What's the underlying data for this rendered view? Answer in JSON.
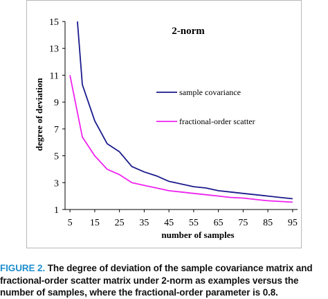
{
  "chart_data": {
    "type": "line",
    "title": "2-norm",
    "xlabel": "number of samples",
    "ylabel": "degree of deviation",
    "xlim": [
      3,
      97
    ],
    "ylim": [
      1,
      15
    ],
    "x_ticks": [
      "5",
      "15",
      "25",
      "35",
      "45",
      "55",
      "65",
      "75",
      "85",
      "95"
    ],
    "y_ticks": [
      "1",
      "3",
      "5",
      "7",
      "9",
      "11",
      "13",
      "15"
    ],
    "grid": false,
    "legend_position": "right-middle",
    "series": [
      {
        "name": "sample covariance",
        "color": "#1a1a8c",
        "x": [
          8,
          10,
          15,
          20,
          25,
          30,
          35,
          40,
          45,
          50,
          55,
          60,
          65,
          70,
          75,
          80,
          85,
          90,
          95
        ],
        "y": [
          15.0,
          10.3,
          7.6,
          5.9,
          5.3,
          4.2,
          3.8,
          3.5,
          3.1,
          2.9,
          2.7,
          2.6,
          2.4,
          2.3,
          2.2,
          2.1,
          2.0,
          1.9,
          1.8
        ]
      },
      {
        "name": "fractional-order scatter",
        "color": "#ee22ee",
        "x": [
          5,
          10,
          15,
          20,
          25,
          30,
          35,
          40,
          45,
          50,
          55,
          60,
          65,
          70,
          75,
          80,
          85,
          90,
          95
        ],
        "y": [
          11.0,
          6.4,
          5.0,
          4.0,
          3.6,
          3.0,
          2.8,
          2.6,
          2.4,
          2.3,
          2.2,
          2.1,
          2.0,
          1.9,
          1.85,
          1.75,
          1.65,
          1.6,
          1.55
        ]
      }
    ]
  },
  "caption": {
    "label": "FIGURE 2.",
    "text": " The degree of deviation of the sample covariance matrix and\nfractional-order scatter matrix under 2-norm as examples versus the\nnumber of samples, where the fractional-order parameter is 0.8."
  }
}
